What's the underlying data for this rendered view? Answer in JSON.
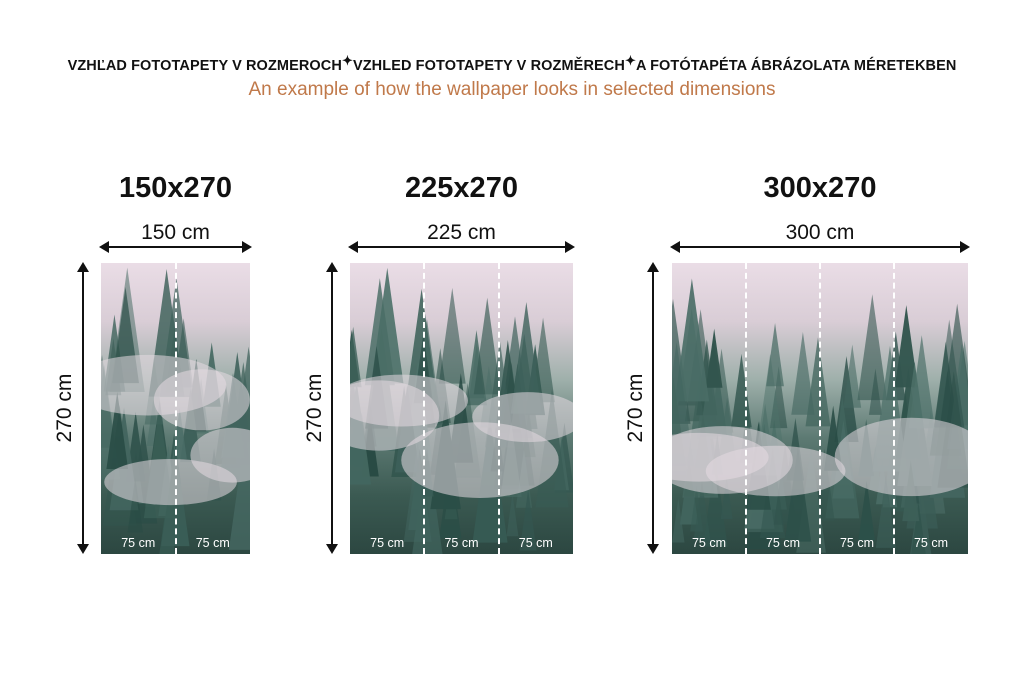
{
  "header": {
    "titles": [
      "VZHĽAD FOTOTAPETY V ROZMEROCH",
      "VZHLED FOTOTAPETY V ROZMĚRECH",
      "A FOTÓTAPÉTA ÁBRÁZOLATA MÉRETEKBEN"
    ],
    "separator": "✦",
    "subtitle": "An example of how the wallpaper looks in selected dimensions"
  },
  "colors": {
    "subtitle": "#c0794a",
    "text": "#111111",
    "fog": "#eadde6",
    "forest": "#2c4741"
  },
  "variants": [
    {
      "title": "150x270",
      "width_label": "150 cm",
      "height_label": "270 cm",
      "strips": [
        "75 cm",
        "75 cm"
      ]
    },
    {
      "title": "225x270",
      "width_label": "225 cm",
      "height_label": "270 cm",
      "strips": [
        "75 cm",
        "75 cm",
        "75 cm"
      ]
    },
    {
      "title": "300x270",
      "width_label": "300 cm",
      "height_label": "270 cm",
      "strips": [
        "75 cm",
        "75 cm",
        "75 cm",
        "75 cm"
      ]
    }
  ]
}
